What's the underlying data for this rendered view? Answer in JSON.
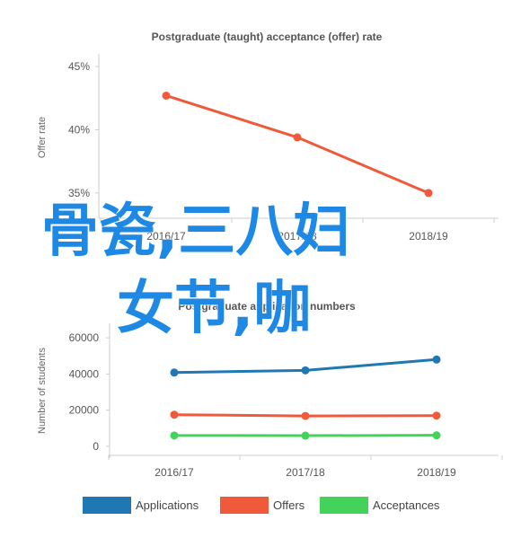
{
  "chart_data": [
    {
      "type": "line",
      "title": "Postgraduate (taught) acceptance (offer) rate",
      "ylabel": "Offer rate",
      "xlabel": "",
      "categories": [
        "2016/17",
        "2017/18",
        "2018/19"
      ],
      "ylim": [
        0.33,
        0.46
      ],
      "yticks": [
        "35%",
        "40%",
        "45%"
      ],
      "ytick_values": [
        0.35,
        0.4,
        0.45
      ],
      "series": [
        {
          "values": [
            0.427,
            0.394,
            0.35
          ],
          "color": "#f05a3a"
        }
      ],
      "grid": false
    },
    {
      "type": "line",
      "title": "Postgraduate application numbers",
      "ylabel": "Number of students",
      "xlabel": "",
      "categories": [
        "2016/17",
        "2017/18",
        "2018/19"
      ],
      "ylim": [
        -5000,
        68000
      ],
      "yticks": [
        "60000",
        "40000",
        "20000",
        "0"
      ],
      "ytick_values": [
        60000,
        40000,
        20000,
        0
      ],
      "series": [
        {
          "name": "Applications",
          "values": [
            40800,
            42000,
            48000
          ],
          "color": "#1f78b4"
        },
        {
          "name": "Offers",
          "values": [
            17500,
            16800,
            17000
          ],
          "color": "#f05a3a"
        },
        {
          "name": "Acceptances",
          "values": [
            6000,
            5900,
            6100
          ],
          "color": "#44d35a"
        }
      ],
      "legend": "bottom",
      "grid": false
    }
  ],
  "overlay": {
    "line1": "骨瓷,三八妇",
    "line2": "女节,咖"
  },
  "colors": {
    "overlay_text": "#1e88e5",
    "axis": "#cccccc"
  }
}
